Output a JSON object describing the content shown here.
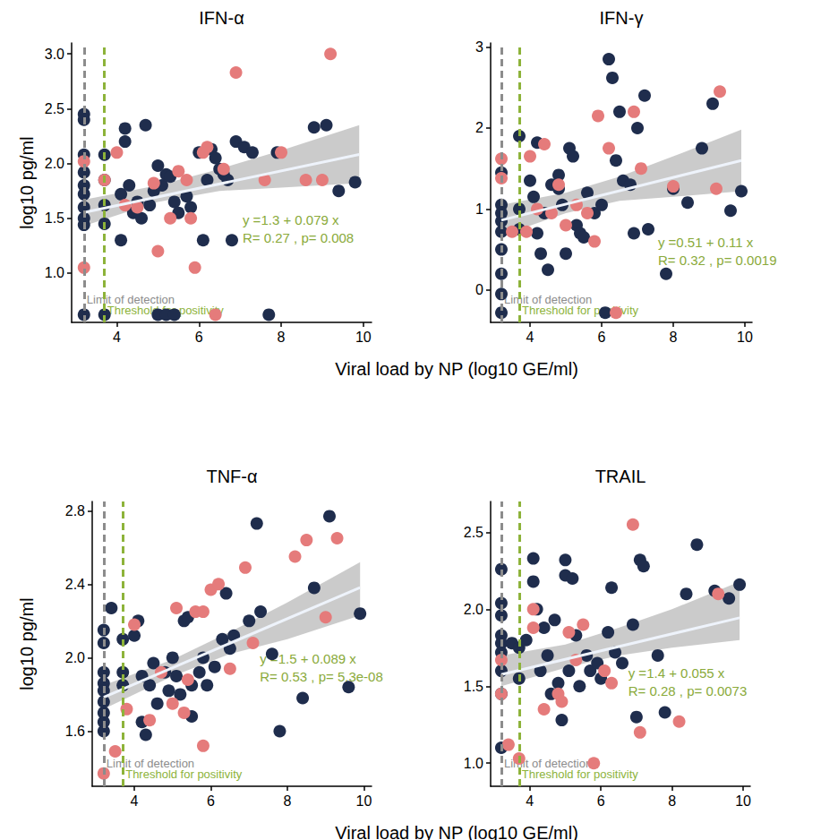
{
  "chart_data": [
    {
      "type": "scatter",
      "title": "IFN-α",
      "x_label": "Viral load by NP (log10 GE/ml)",
      "y_label": "log10 pg/ml",
      "xlim": [
        2.9,
        10.2
      ],
      "xticks": [
        4,
        6,
        8,
        10
      ],
      "ylim": [
        0.55,
        3.1
      ],
      "yticks": [
        {
          "value": 1,
          "label": "1.0"
        },
        1.5,
        {
          "value": 2,
          "label": "2.0"
        },
        2.5,
        {
          "value": 3,
          "label": "3.0"
        }
      ],
      "grid": false,
      "series": [
        {
          "color": "#1f2d4d",
          "marker": "circle",
          "x": [
            3.2,
            3.2,
            3.2,
            3.2,
            3.2,
            3.2,
            3.2,
            3.2,
            3.2,
            3.2,
            3.7,
            3.7,
            3.7,
            3.7,
            3.7,
            4.1,
            4.2,
            4.2,
            4.3,
            4.1,
            4.4,
            4.5,
            4.6,
            4.7,
            4.8,
            4.9,
            5.0,
            5.0,
            5.1,
            5.2,
            5.3,
            5.2,
            5.4,
            5.5,
            5.4,
            5.7,
            5.8,
            6.0,
            6.1,
            6.2,
            6.3,
            6.4,
            6.5,
            6.6,
            6.7,
            6.8,
            6.9,
            7.1,
            7.3,
            7.7,
            7.9,
            8.8,
            9.1,
            9.4,
            9.8
          ],
          "values": [
            2.45,
            2.4,
            2.08,
            1.92,
            1.8,
            1.72,
            1.6,
            1.5,
            1.44,
            0.62,
            2.08,
            1.85,
            1.62,
            1.45,
            0.62,
            1.72,
            2.32,
            2.2,
            1.8,
            1.3,
            1.55,
            1.65,
            1.5,
            2.35,
            1.62,
            1.75,
            1.98,
            0.62,
            1.8,
            1.9,
            1.88,
            0.62,
            1.65,
            1.55,
            0.62,
            1.7,
            1.6,
            2.1,
            1.3,
            1.85,
            2.13,
            2.05,
            1.95,
            1.9,
            1.85,
            1.3,
            2.2,
            2.15,
            2.1,
            0.62,
            2.1,
            2.33,
            2.35,
            1.75,
            1.83
          ]
        },
        {
          "color": "#e57b7b",
          "marker": "circle",
          "x": [
            3.2,
            3.2,
            3.7,
            4.0,
            4.2,
            4.5,
            4.9,
            5.0,
            5.3,
            5.5,
            5.7,
            5.8,
            5.9,
            6.1,
            6.2,
            6.4,
            6.6,
            6.9,
            7.6,
            8.0,
            8.6,
            9.0,
            9.2
          ],
          "values": [
            2.02,
            1.05,
            1.85,
            2.1,
            1.62,
            1.6,
            1.82,
            1.2,
            1.5,
            1.93,
            1.85,
            1.5,
            1.05,
            2.1,
            2.15,
            0.62,
            1.95,
            2.83,
            1.85,
            2.1,
            1.85,
            1.85,
            3.0
          ]
        }
      ],
      "fit": {
        "intercept": 1.3,
        "slope": 0.079,
        "equation": "y =1.3 + 0.079 x",
        "stats": "R= 0.27 , p= 0.008"
      },
      "band": {
        "x": [
          3.2,
          5,
          6.5,
          8,
          9.9
        ],
        "lower": [
          1.43,
          1.65,
          1.75,
          1.78,
          1.82
        ],
        "upper": [
          1.67,
          1.8,
          1.95,
          2.12,
          2.35
        ]
      },
      "vlines": [
        {
          "x": 3.2,
          "label": "Limit of detection",
          "color": "#8c8c8c"
        },
        {
          "x": 3.7,
          "label": "Threshold for positivity",
          "color": "#8db33a"
        }
      ]
    },
    {
      "type": "scatter",
      "title": "IFN-γ",
      "xlim": [
        2.9,
        10.2
      ],
      "xticks": [
        4,
        6,
        8,
        10
      ],
      "ylim": [
        -0.4,
        3.05
      ],
      "yticks": [
        0,
        1,
        2,
        3
      ],
      "grid": false,
      "series": [
        {
          "color": "#1f2d4d",
          "marker": "circle",
          "x": [
            3.2,
            3.2,
            3.2,
            3.2,
            3.2,
            3.2,
            3.2,
            3.2,
            3.2,
            3.7,
            3.7,
            3.7,
            4.0,
            4.1,
            4.2,
            4.2,
            4.3,
            4.4,
            4.5,
            4.6,
            4.8,
            4.8,
            4.9,
            5.0,
            5.1,
            5.2,
            5.3,
            5.4,
            5.5,
            5.6,
            5.8,
            6.0,
            6.1,
            6.2,
            6.3,
            6.4,
            6.5,
            6.6,
            6.8,
            6.9,
            7.0,
            7.2,
            7.3,
            7.8,
            8.0,
            8.4,
            8.8,
            9.1,
            9.6,
            9.9
          ],
          "values": [
            1.45,
            1.05,
            0.95,
            0.85,
            0.72,
            0.5,
            0.2,
            -0.05,
            -0.28,
            1.9,
            1.0,
            0.75,
            1.35,
            1.15,
            1.82,
            0.7,
            0.45,
            0.95,
            0.25,
            1.3,
            1.42,
            1.25,
            1.05,
            0.45,
            1.75,
            1.65,
            0.8,
            0.7,
            0.65,
            1.2,
            0.95,
            1.05,
            -0.28,
            2.85,
            2.62,
            1.6,
            2.2,
            1.35,
            1.3,
            0.7,
            2.0,
            2.4,
            0.75,
            0.2,
            1.25,
            1.08,
            1.75,
            2.3,
            0.98,
            1.22
          ]
        },
        {
          "color": "#e57b7b",
          "marker": "circle",
          "x": [
            3.2,
            3.2,
            3.5,
            3.9,
            4.0,
            4.2,
            4.4,
            4.6,
            4.8,
            5.0,
            5.3,
            5.6,
            5.8,
            5.9,
            6.2,
            6.4,
            6.9,
            7.1,
            8.0,
            9.2,
            9.3
          ],
          "values": [
            1.62,
            1.38,
            0.72,
            0.72,
            1.65,
            1.0,
            1.8,
            0.95,
            1.3,
            0.8,
            1.05,
            0.95,
            0.6,
            2.15,
            1.75,
            -0.28,
            2.2,
            1.5,
            1.28,
            1.25,
            2.45
          ]
        }
      ],
      "fit": {
        "intercept": 0.51,
        "slope": 0.11,
        "equation": "y =0.51 + 0.11 x",
        "stats": "R= 0.32 , p= 0.0019"
      },
      "band": {
        "x": [
          3.2,
          5,
          6.5,
          8,
          9.9
        ],
        "lower": [
          0.67,
          0.95,
          1.1,
          1.15,
          1.22
        ],
        "upper": [
          1.05,
          1.2,
          1.4,
          1.65,
          1.98
        ]
      },
      "vlines": [
        {
          "x": 3.2,
          "label": "Limit of detection",
          "color": "#8c8c8c"
        },
        {
          "x": 3.7,
          "label": "Threshold for positivity",
          "color": "#8db33a"
        }
      ]
    },
    {
      "type": "scatter",
      "title": "TNF-α",
      "x_label": "Viral load by NP (log10 GE/ml)",
      "y_label": "log10 pg/ml",
      "xlim": [
        2.9,
        10.2
      ],
      "xticks": [
        4,
        6,
        8,
        10
      ],
      "ylim": [
        1.3,
        2.85
      ],
      "yticks": [
        1.6,
        {
          "value": 2,
          "label": "2.0"
        },
        2.4,
        2.8
      ],
      "grid": false,
      "series": [
        {
          "color": "#1f2d4d",
          "marker": "circle",
          "x": [
            3.2,
            3.2,
            3.2,
            3.2,
            3.2,
            3.2,
            3.2,
            3.2,
            3.2,
            3.4,
            3.7,
            3.7,
            3.7,
            4.0,
            4.1,
            4.2,
            4.2,
            4.3,
            4.4,
            4.5,
            4.6,
            4.8,
            4.9,
            5.0,
            5.1,
            5.2,
            5.3,
            5.4,
            5.5,
            5.5,
            5.7,
            5.8,
            5.9,
            6.1,
            6.3,
            6.4,
            6.5,
            6.6,
            7.0,
            7.2,
            7.3,
            7.6,
            7.8,
            8.4,
            8.7,
            9.1,
            9.6,
            9.9
          ],
          "values": [
            2.15,
            2.08,
            1.92,
            1.86,
            1.82,
            1.76,
            1.7,
            1.65,
            1.6,
            2.27,
            2.1,
            1.92,
            1.85,
            2.12,
            2.2,
            1.9,
            1.65,
            1.58,
            1.85,
            1.97,
            1.75,
            1.92,
            1.82,
            2.0,
            1.9,
            1.8,
            2.2,
            2.22,
            1.85,
            1.68,
            1.92,
            2.0,
            1.85,
            1.95,
            2.1,
            2.35,
            2.05,
            2.12,
            2.2,
            2.73,
            2.25,
            2.02,
            1.6,
            1.78,
            2.38,
            2.77,
            1.84,
            2.24
          ]
        },
        {
          "color": "#e57b7b",
          "marker": "circle",
          "x": [
            3.2,
            3.5,
            3.8,
            4.0,
            4.4,
            4.7,
            5.0,
            5.1,
            5.3,
            5.4,
            5.6,
            5.8,
            5.8,
            6.0,
            6.2,
            6.5,
            6.9,
            7.1,
            8.2,
            8.5,
            9.0,
            9.3
          ],
          "values": [
            1.37,
            1.49,
            1.72,
            2.18,
            1.66,
            1.92,
            1.75,
            2.27,
            1.7,
            1.88,
            2.25,
            1.52,
            2.25,
            2.37,
            2.4,
            1.94,
            2.49,
            2.08,
            2.55,
            2.64,
            2.22,
            2.65
          ]
        }
      ],
      "fit": {
        "intercept": 1.5,
        "slope": 0.089,
        "equation": "y =1.5 + 0.089 x",
        "stats": "R= 0.53 , p= 5.3e-08"
      },
      "band": {
        "x": [
          3.2,
          5,
          6.5,
          8,
          9.9
        ],
        "lower": [
          1.72,
          1.9,
          2.02,
          2.1,
          2.23
        ],
        "upper": [
          1.85,
          1.99,
          2.14,
          2.3,
          2.52
        ]
      },
      "vlines": [
        {
          "x": 3.2,
          "label": "Limit of detection",
          "color": "#8c8c8c"
        },
        {
          "x": 3.7,
          "label": "Threshold for positivity",
          "color": "#8db33a"
        }
      ]
    },
    {
      "type": "scatter",
      "title": "TRAIL",
      "xlim": [
        2.9,
        10.2
      ],
      "xticks": [
        4,
        6,
        8,
        10
      ],
      "ylim": [
        0.85,
        2.7
      ],
      "yticks": [
        {
          "value": 1,
          "label": "1.0"
        },
        1.5,
        {
          "value": 2,
          "label": "2.0"
        },
        2.5
      ],
      "grid": false,
      "series": [
        {
          "color": "#1f2d4d",
          "marker": "circle",
          "x": [
            3.2,
            3.2,
            3.2,
            3.2,
            3.2,
            3.2,
            3.2,
            3.2,
            3.2,
            3.5,
            3.7,
            3.7,
            3.9,
            4.1,
            4.1,
            4.2,
            4.3,
            4.4,
            4.5,
            4.6,
            4.7,
            4.8,
            4.9,
            5.0,
            5.0,
            5.1,
            5.2,
            5.3,
            5.4,
            5.6,
            5.7,
            5.9,
            6.0,
            6.2,
            6.3,
            6.4,
            6.6,
            6.9,
            7.0,
            7.1,
            7.2,
            7.6,
            7.8,
            8.4,
            8.7,
            9.2,
            9.6,
            9.9
          ],
          "values": [
            2.26,
            2.04,
            1.96,
            1.83,
            1.78,
            1.72,
            1.6,
            1.45,
            1.1,
            1.78,
            1.75,
            1.55,
            1.8,
            2.33,
            2.18,
            2.0,
            1.6,
            1.88,
            1.7,
            1.45,
            1.93,
            1.52,
            1.28,
            2.32,
            2.22,
            1.6,
            2.2,
            1.83,
            1.5,
            1.7,
            1.6,
            1.65,
            1.55,
            1.85,
            2.14,
            1.72,
            1.65,
            1.9,
            1.3,
            2.32,
            2.28,
            1.7,
            1.33,
            2.1,
            2.42,
            2.12,
            2.07,
            2.16
          ]
        },
        {
          "color": "#e57b7b",
          "marker": "circle",
          "x": [
            3.2,
            3.2,
            3.4,
            3.7,
            4.1,
            4.1,
            4.4,
            4.8,
            4.9,
            5.1,
            5.3,
            5.5,
            5.8,
            6.1,
            6.3,
            6.9,
            7.1,
            8.2,
            9.3
          ],
          "values": [
            1.67,
            1.45,
            1.12,
            1.03,
            2.0,
            1.88,
            1.35,
            1.45,
            1.4,
            1.85,
            1.67,
            1.9,
            1.0,
            1.6,
            1.52,
            2.55,
            1.2,
            1.27,
            2.1
          ]
        }
      ],
      "fit": {
        "intercept": 1.4,
        "slope": 0.055,
        "equation": "y =1.4 + 0.055 x",
        "stats": "R= 0.28 , p= 0.0073"
      },
      "band": {
        "x": [
          3.2,
          5,
          6.5,
          8,
          9.9
        ],
        "lower": [
          1.5,
          1.62,
          1.7,
          1.75,
          1.8
        ],
        "upper": [
          1.7,
          1.77,
          1.88,
          2.0,
          2.18
        ]
      },
      "vlines": [
        {
          "x": 3.2,
          "label": "Limit of detection",
          "color": "#8c8c8c"
        },
        {
          "x": 3.7,
          "label": "Threshold for positivity",
          "color": "#8db33a"
        }
      ]
    }
  ]
}
